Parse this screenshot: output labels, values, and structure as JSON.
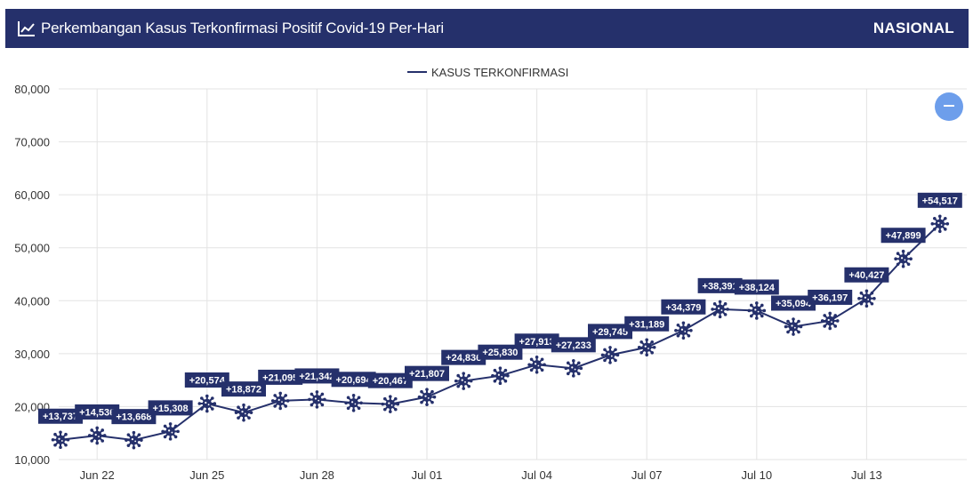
{
  "header": {
    "title": "Perkembangan Kasus Terkonfirmasi Positif Covid-19 Per-Hari",
    "scope": "NASIONAL",
    "icon": "line-chart-icon"
  },
  "zoom_button": {
    "icon": "minus-icon"
  },
  "colors": {
    "primary": "#25306b",
    "zoom": "#6d9eeb",
    "grid": "#e3e3e3"
  },
  "chart_data": {
    "type": "line",
    "title": "",
    "legend": {
      "position": "top-center",
      "entries": [
        "KASUS TERKONFIRMASI"
      ]
    },
    "grid": true,
    "ylim": [
      10000,
      80000
    ],
    "ytick_labels": [
      "10,000",
      "20,000",
      "30,000",
      "40,000",
      "50,000",
      "60,000",
      "70,000",
      "80,000"
    ],
    "yticks": [
      10000,
      20000,
      30000,
      40000,
      50000,
      60000,
      70000,
      80000
    ],
    "xtick_labels": [
      "Jun 22",
      "Jun 25",
      "Jun 28",
      "Jul 01",
      "Jul 04",
      "Jul 07",
      "Jul 10",
      "Jul 13"
    ],
    "xtick_days": [
      1,
      4,
      7,
      10,
      13,
      16,
      19,
      22
    ],
    "series": [
      {
        "name": "KASUS TERKONFIRMASI",
        "days": [
          0,
          1,
          2,
          3,
          4,
          5,
          6,
          7,
          8,
          9,
          10,
          11,
          12,
          13,
          14,
          15,
          16,
          17,
          18,
          19,
          20,
          21,
          22,
          23,
          24
        ],
        "values": [
          13737,
          14536,
          13668,
          15308,
          20574,
          18872,
          21095,
          21342,
          20694,
          20467,
          21807,
          24836,
          25830,
          27913,
          27233,
          29745,
          31189,
          34379,
          38391,
          38124,
          35094,
          36197,
          40427,
          47899,
          54517
        ],
        "labels": [
          "+13,737",
          "+14,536",
          "+13,668",
          "+15,308",
          "+20,574",
          "+18,872",
          "+21,095",
          "+21,342",
          "+20,694",
          "+20,467",
          "+21,807",
          "+24,836",
          "+25,830",
          "+27,913",
          "+27,233",
          "+29,745",
          "+31,189",
          "+34,379",
          "+38,391",
          "+38,124",
          "+35,094",
          "+36,197",
          "+40,427",
          "+47,899",
          "+54,517"
        ]
      }
    ]
  }
}
